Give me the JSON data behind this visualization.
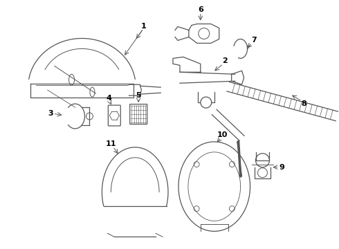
{
  "background_color": "#ffffff",
  "line_color": "#555555",
  "fig_width": 4.9,
  "fig_height": 3.6,
  "dpi": 100
}
